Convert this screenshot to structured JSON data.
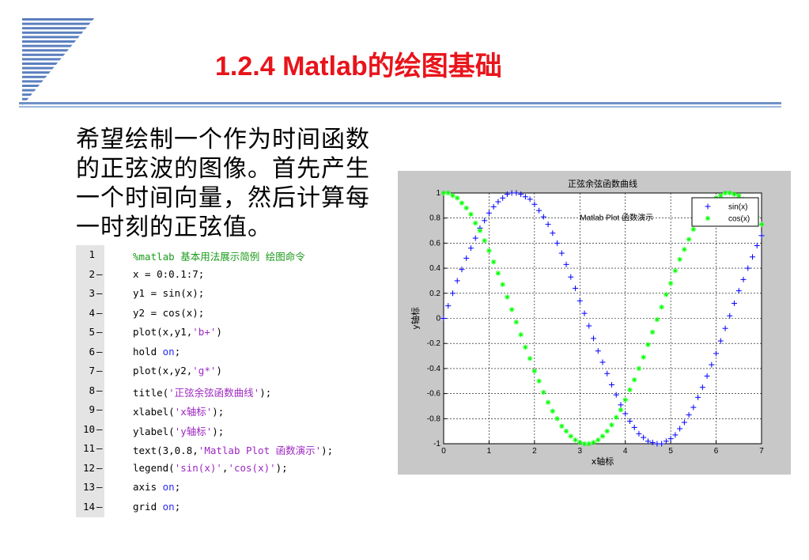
{
  "slide": {
    "title": "1.2.4 Matlab的绘图基础",
    "description": "希望绘制一个作为时间函数的正弦波的图像。首先产生一个时间向量，然后计算每一时刻的正弦值。"
  },
  "code": {
    "lines": [
      {
        "n": "1",
        "dash": "",
        "parts": [
          {
            "t": "%matlab 基本用法展示简例 绘图命令",
            "c": "cmt"
          }
        ]
      },
      {
        "n": "2",
        "dash": "–",
        "parts": [
          {
            "t": "x = 0:0.1:7;",
            "c": ""
          }
        ]
      },
      {
        "n": "3",
        "dash": "–",
        "parts": [
          {
            "t": "y1 = sin(x);",
            "c": ""
          }
        ]
      },
      {
        "n": "4",
        "dash": "–",
        "parts": [
          {
            "t": "y2 = cos(x);",
            "c": ""
          }
        ]
      },
      {
        "n": "5",
        "dash": "–",
        "parts": [
          {
            "t": "plot(x,y1,",
            "c": ""
          },
          {
            "t": "'b+'",
            "c": "str"
          },
          {
            "t": ")",
            "c": ""
          }
        ]
      },
      {
        "n": "6",
        "dash": "–",
        "parts": [
          {
            "t": "hold ",
            "c": ""
          },
          {
            "t": "on",
            "c": "kw"
          },
          {
            "t": ";",
            "c": ""
          }
        ]
      },
      {
        "n": "7",
        "dash": "–",
        "parts": [
          {
            "t": "plot(x,y2,",
            "c": ""
          },
          {
            "t": "'g*'",
            "c": "str"
          },
          {
            "t": ")",
            "c": ""
          }
        ]
      },
      {
        "n": "8",
        "dash": "–",
        "parts": [
          {
            "t": "title(",
            "c": ""
          },
          {
            "t": "'正弦余弦函数曲线'",
            "c": "str"
          },
          {
            "t": ");",
            "c": ""
          }
        ]
      },
      {
        "n": "9",
        "dash": "–",
        "parts": [
          {
            "t": "xlabel(",
            "c": ""
          },
          {
            "t": "'x轴标'",
            "c": "str"
          },
          {
            "t": ");",
            "c": ""
          }
        ]
      },
      {
        "n": "10",
        "dash": "–",
        "parts": [
          {
            "t": "ylabel(",
            "c": ""
          },
          {
            "t": "'y轴标'",
            "c": "str"
          },
          {
            "t": ");",
            "c": ""
          }
        ]
      },
      {
        "n": "11",
        "dash": "–",
        "parts": [
          {
            "t": "text(3,0.8,",
            "c": ""
          },
          {
            "t": "'Matlab Plot 函数演示'",
            "c": "str"
          },
          {
            "t": ");",
            "c": ""
          }
        ]
      },
      {
        "n": "12",
        "dash": "–",
        "parts": [
          {
            "t": "legend(",
            "c": ""
          },
          {
            "t": "'sin(x)'",
            "c": "str"
          },
          {
            "t": ",",
            "c": ""
          },
          {
            "t": "'cos(x)'",
            "c": "str"
          },
          {
            "t": ");",
            "c": ""
          }
        ]
      },
      {
        "n": "13",
        "dash": "–",
        "parts": [
          {
            "t": "axis ",
            "c": ""
          },
          {
            "t": "on",
            "c": "kw"
          },
          {
            "t": ";",
            "c": ""
          }
        ]
      },
      {
        "n": "14",
        "dash": "–",
        "parts": [
          {
            "t": "grid ",
            "c": ""
          },
          {
            "t": "on",
            "c": "kw"
          },
          {
            "t": ";",
            "c": ""
          }
        ]
      }
    ]
  },
  "chart_data": {
    "type": "scatter",
    "title": "正弦余弦函数曲线",
    "xlabel": "x轴标",
    "ylabel": "y轴标",
    "xlim": [
      0,
      7
    ],
    "ylim": [
      -1,
      1
    ],
    "xticks": [
      "0",
      "1",
      "2",
      "3",
      "4",
      "5",
      "6",
      "7"
    ],
    "yticks": [
      "-1",
      "-0.8",
      "-0.6",
      "-0.4",
      "-0.2",
      "0",
      "0.2",
      "0.4",
      "0.6",
      "0.8",
      "1"
    ],
    "grid": true,
    "legend_position": "top-right",
    "annotation": {
      "text": "Matlab Plot 函数演示",
      "x": 3,
      "y": 0.8
    },
    "x": [
      0,
      0.1,
      0.2,
      0.3,
      0.4,
      0.5,
      0.6,
      0.7,
      0.8,
      0.9,
      1,
      1.1,
      1.2,
      1.3,
      1.4,
      1.5,
      1.6,
      1.7,
      1.8,
      1.9,
      2,
      2.1,
      2.2,
      2.3,
      2.4,
      2.5,
      2.6,
      2.7,
      2.8,
      2.9,
      3,
      3.1,
      3.2,
      3.3,
      3.4,
      3.5,
      3.6,
      3.7,
      3.8,
      3.9,
      4,
      4.1,
      4.2,
      4.3,
      4.4,
      4.5,
      4.6,
      4.7,
      4.8,
      4.9,
      5,
      5.1,
      5.2,
      5.3,
      5.4,
      5.5,
      5.6,
      5.7,
      5.8,
      5.9,
      6,
      6.1,
      6.2,
      6.3,
      6.4,
      6.5,
      6.6,
      6.7,
      6.8,
      6.9,
      7
    ],
    "series": [
      {
        "name": "sin(x)",
        "marker": "+",
        "color": "#0000ff",
        "values": [
          0,
          0.1,
          0.2,
          0.3,
          0.39,
          0.48,
          0.56,
          0.64,
          0.72,
          0.78,
          0.84,
          0.89,
          0.93,
          0.96,
          0.99,
          1,
          1,
          0.99,
          0.97,
          0.95,
          0.91,
          0.86,
          0.81,
          0.75,
          0.68,
          0.6,
          0.52,
          0.43,
          0.33,
          0.24,
          0.14,
          0.04,
          -0.06,
          -0.16,
          -0.26,
          -0.35,
          -0.44,
          -0.53,
          -0.61,
          -0.69,
          -0.76,
          -0.82,
          -0.87,
          -0.92,
          -0.95,
          -0.98,
          -0.99,
          -1,
          -1,
          -0.98,
          -0.96,
          -0.93,
          -0.88,
          -0.83,
          -0.77,
          -0.71,
          -0.63,
          -0.55,
          -0.46,
          -0.37,
          -0.28,
          -0.18,
          -0.08,
          0.02,
          0.12,
          0.22,
          0.31,
          0.4,
          0.49,
          0.58,
          0.66
        ]
      },
      {
        "name": "cos(x)",
        "marker": "*",
        "color": "#00ff00",
        "values": [
          1,
          1,
          0.98,
          0.96,
          0.92,
          0.88,
          0.83,
          0.76,
          0.7,
          0.62,
          0.54,
          0.45,
          0.36,
          0.27,
          0.17,
          0.07,
          -0.03,
          -0.13,
          -0.23,
          -0.32,
          -0.42,
          -0.5,
          -0.59,
          -0.67,
          -0.74,
          -0.8,
          -0.86,
          -0.9,
          -0.94,
          -0.97,
          -0.99,
          -1,
          -1,
          -0.99,
          -0.97,
          -0.94,
          -0.9,
          -0.85,
          -0.79,
          -0.73,
          -0.65,
          -0.57,
          -0.49,
          -0.4,
          -0.31,
          -0.21,
          -0.11,
          -0.01,
          0.09,
          0.19,
          0.28,
          0.38,
          0.47,
          0.55,
          0.63,
          0.71,
          0.78,
          0.83,
          0.89,
          0.93,
          0.96,
          0.98,
          1,
          1,
          0.99,
          0.98,
          0.95,
          0.91,
          0.87,
          0.81,
          0.75
        ]
      }
    ]
  },
  "colors": {
    "title_red": "#e8141b",
    "rule_blue": "#6f92c6",
    "figure_gray": "#c8c8c8"
  }
}
